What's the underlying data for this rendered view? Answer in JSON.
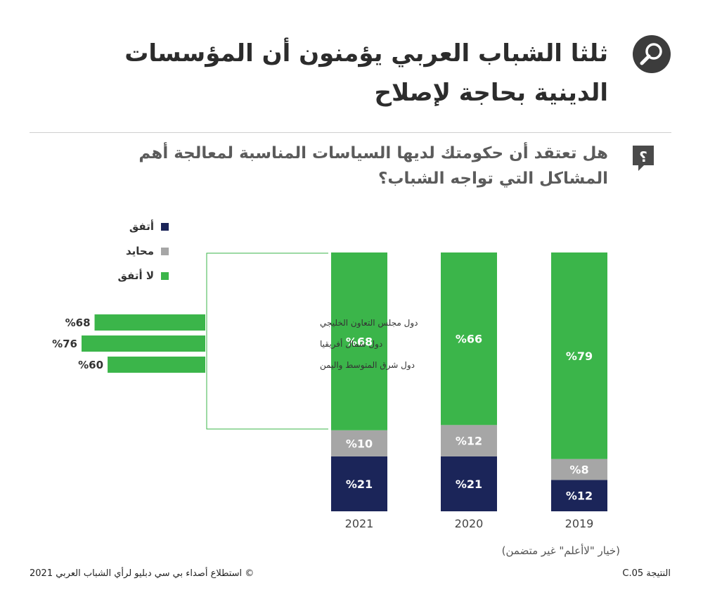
{
  "header": {
    "title": "ثلثا الشباب العربي يؤمنون أن المؤسسات الدينية بحاجة لإصلاح",
    "question": "هل تعتقد أن حكومتك لديها السياسات المناسبة لمعالجة أهم المشاكل التي تواجه الشباب؟",
    "title_icon": "magnifier-icon",
    "question_icon": "question-bubble-icon"
  },
  "legend": [
    {
      "label": "أتفق",
      "color": "#1b2559"
    },
    {
      "label": "محايد",
      "color": "#a6a6a6"
    },
    {
      "label": "لا أتفق",
      "color": "#3bb54a"
    }
  ],
  "chart_data": [
    {
      "type": "bar",
      "stacked": true,
      "orientation": "vertical",
      "categories": [
        "2021",
        "2020",
        "2019"
      ],
      "series": [
        {
          "name": "أتفق",
          "values": [
            21,
            21,
            12
          ],
          "labels": [
            "%21",
            "%21",
            "%12"
          ],
          "color": "#1b2559"
        },
        {
          "name": "محايد",
          "values": [
            10,
            12,
            8
          ],
          "labels": [
            "%10",
            "%12",
            "%8"
          ],
          "color": "#a6a6a6"
        },
        {
          "name": "لا أتفق",
          "values": [
            68,
            66,
            79
          ],
          "labels": [
            "%68",
            "%66",
            "%79"
          ],
          "color": "#3bb54a"
        }
      ],
      "ylim": [
        0,
        100
      ],
      "grid": false,
      "legend_position": "top-left"
    },
    {
      "type": "bar",
      "orientation": "horizontal",
      "categories": [
        "دول مجلس التعاون الخليجي",
        "دول شمال أفريقيا",
        "دول شرق المتوسط واليمن"
      ],
      "values": [
        68,
        76,
        60
      ],
      "labels": [
        "%68",
        "%76",
        "%60"
      ],
      "color": "#3bb54a",
      "annotation": "breakdown of 2021 لا أتفق by region"
    }
  ],
  "footnote": "(خيار \"لاأعلم\" غير متضمن)",
  "footer": {
    "copyright": "© استطلاع أصداء بي سي دبليو لرأي الشباب العربي 2021",
    "code": "النتيجة C.05"
  }
}
